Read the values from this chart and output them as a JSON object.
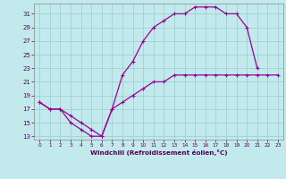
{
  "xlabel": "Windchill (Refroidissement éolien,°C)",
  "bg_color": "#c2eaed",
  "grid_color": "#a0d0d4",
  "line_color": "#990099",
  "xlim": [
    -0.5,
    23.5
  ],
  "ylim": [
    12.5,
    32.5
  ],
  "xticks": [
    0,
    1,
    2,
    3,
    4,
    5,
    6,
    7,
    8,
    9,
    10,
    11,
    12,
    13,
    14,
    15,
    16,
    17,
    18,
    19,
    20,
    21,
    22,
    23
  ],
  "yticks": [
    13,
    15,
    17,
    19,
    21,
    23,
    25,
    27,
    29,
    31
  ],
  "curve1_x": [
    0,
    1,
    2,
    3,
    4,
    5,
    6,
    7,
    8,
    9,
    10,
    11,
    12,
    13,
    14,
    15,
    16,
    17,
    18,
    19,
    20,
    21
  ],
  "curve1_y": [
    18,
    17,
    17,
    15,
    14,
    13,
    13,
    17,
    22,
    24,
    27,
    29,
    30,
    31,
    31,
    32,
    32,
    32,
    31,
    31,
    29,
    23
  ],
  "curve2_x": [
    0,
    1,
    2,
    3,
    4,
    5,
    6,
    7,
    8,
    9,
    10,
    11,
    12,
    13,
    14,
    15,
    16,
    17,
    18,
    19,
    20,
    21,
    22,
    23
  ],
  "curve2_y": [
    18,
    17,
    17,
    16,
    15,
    14,
    13,
    17,
    18,
    19,
    20,
    21,
    21,
    22,
    22,
    22,
    22,
    22,
    22,
    22,
    22,
    22,
    22,
    22
  ]
}
